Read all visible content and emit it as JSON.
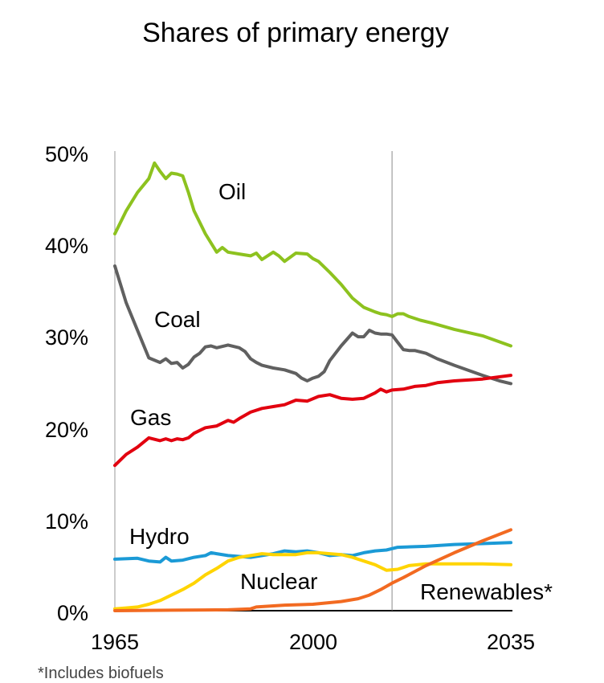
{
  "chart_data": {
    "type": "line",
    "title": "Shares of primary energy",
    "footnote": "*Includes biofuels",
    "x_ticks": [
      "1965",
      "2000",
      "2035"
    ],
    "y_ticks": [
      "0%",
      "10%",
      "20%",
      "30%",
      "40%",
      "50%"
    ],
    "xlim": [
      1965,
      2035
    ],
    "ylim": [
      0,
      50
    ],
    "projection_start": 2014,
    "grid": false,
    "series": [
      {
        "name": "Oil",
        "color": "#8dc21f",
        "x": [
          1965,
          1967,
          1969,
          1971,
          1972,
          1973,
          1974,
          1975,
          1976,
          1977,
          1978,
          1979,
          1981,
          1983,
          1984,
          1985,
          1987,
          1989,
          1990,
          1991,
          1993,
          1994,
          1995,
          1997,
          1999,
          2000,
          2001,
          2003,
          2005,
          2007,
          2009,
          2011,
          2012,
          2013,
          2014,
          2015,
          2016,
          2017,
          2019,
          2021,
          2025,
          2030,
          2035
        ],
        "y": [
          41.0,
          43.5,
          45.5,
          47.0,
          48.7,
          47.8,
          47.0,
          47.6,
          47.5,
          47.3,
          45.5,
          43.5,
          41.0,
          39.0,
          39.5,
          39.0,
          38.8,
          38.6,
          38.9,
          38.2,
          39.0,
          38.6,
          38.0,
          38.9,
          38.8,
          38.3,
          38.0,
          36.8,
          35.5,
          34.0,
          33.0,
          32.5,
          32.3,
          32.2,
          32.0,
          32.3,
          32.3,
          32.0,
          31.6,
          31.3,
          30.6,
          29.9,
          28.8
        ]
      },
      {
        "name": "Coal",
        "color": "#606060",
        "x": [
          1965,
          1967,
          1969,
          1971,
          1973,
          1974,
          1975,
          1976,
          1977,
          1978,
          1979,
          1980,
          1981,
          1982,
          1983,
          1985,
          1987,
          1988,
          1989,
          1990,
          1991,
          1993,
          1995,
          1997,
          1998,
          1999,
          2000,
          2001,
          2002,
          2003,
          2005,
          2007,
          2008,
          2009,
          2010,
          2011,
          2012,
          2013,
          2014,
          2015,
          2016,
          2017,
          2018,
          2020,
          2022,
          2025,
          2030,
          2033,
          2035
        ],
        "y": [
          37.5,
          33.5,
          30.5,
          27.5,
          27.0,
          27.4,
          26.9,
          27.0,
          26.4,
          26.8,
          27.6,
          28.0,
          28.7,
          28.8,
          28.6,
          28.9,
          28.6,
          28.2,
          27.4,
          27.0,
          26.7,
          26.4,
          26.2,
          25.8,
          25.3,
          25.0,
          25.3,
          25.5,
          26.0,
          27.2,
          28.8,
          30.2,
          29.8,
          29.8,
          30.5,
          30.2,
          30.1,
          30.1,
          30.0,
          29.2,
          28.4,
          28.3,
          28.3,
          28.0,
          27.4,
          26.7,
          25.6,
          25.0,
          24.7
        ]
      },
      {
        "name": "Gas",
        "color": "#e2000f",
        "x": [
          1965,
          1967,
          1969,
          1971,
          1973,
          1974,
          1975,
          1976,
          1977,
          1978,
          1979,
          1981,
          1983,
          1985,
          1986,
          1987,
          1989,
          1991,
          1993,
          1995,
          1997,
          1999,
          2001,
          2003,
          2005,
          2007,
          2009,
          2011,
          2012,
          2013,
          2014,
          2016,
          2018,
          2020,
          2022,
          2025,
          2030,
          2035
        ],
        "y": [
          15.8,
          17.0,
          17.8,
          18.8,
          18.5,
          18.7,
          18.5,
          18.7,
          18.6,
          18.8,
          19.3,
          19.9,
          20.1,
          20.7,
          20.5,
          20.9,
          21.6,
          22.0,
          22.2,
          22.4,
          22.9,
          22.8,
          23.3,
          23.5,
          23.1,
          23.0,
          23.1,
          23.7,
          24.1,
          23.8,
          24.0,
          24.1,
          24.4,
          24.5,
          24.8,
          25.0,
          25.2,
          25.6
        ]
      },
      {
        "name": "Hydro",
        "color": "#1b9ad6",
        "x": [
          1965,
          1969,
          1971,
          1973,
          1974,
          1975,
          1977,
          1979,
          1981,
          1982,
          1983,
          1985,
          1987,
          1989,
          1991,
          1993,
          1995,
          1997,
          1999,
          2001,
          2003,
          2005,
          2007,
          2009,
          2011,
          2013,
          2015,
          2020,
          2025,
          2030,
          2035
        ],
        "y": [
          5.6,
          5.7,
          5.4,
          5.3,
          5.8,
          5.4,
          5.5,
          5.8,
          6.0,
          6.3,
          6.2,
          6.0,
          5.9,
          5.8,
          6.0,
          6.2,
          6.5,
          6.4,
          6.5,
          6.3,
          6.0,
          6.1,
          6.0,
          6.3,
          6.5,
          6.6,
          6.9,
          7.0,
          7.2,
          7.3,
          7.4
        ]
      },
      {
        "name": "Nuclear",
        "color": "#ffd400",
        "x": [
          1965,
          1967,
          1969,
          1971,
          1973,
          1975,
          1977,
          1979,
          1981,
          1983,
          1985,
          1987,
          1989,
          1991,
          1993,
          1995,
          1997,
          1999,
          2001,
          2003,
          2005,
          2007,
          2009,
          2011,
          2013,
          2015,
          2017,
          2020,
          2025,
          2030,
          2035
        ],
        "y": [
          0.2,
          0.3,
          0.4,
          0.7,
          1.1,
          1.7,
          2.3,
          3.0,
          3.9,
          4.6,
          5.4,
          5.8,
          6.0,
          6.2,
          6.1,
          6.1,
          6.1,
          6.3,
          6.3,
          6.2,
          6.1,
          5.8,
          5.4,
          5.0,
          4.4,
          4.5,
          4.9,
          5.1,
          5.1,
          5.1,
          5.0
        ]
      },
      {
        "name": "Renewables*",
        "color": "#f26a21",
        "x": [
          1965,
          1975,
          1985,
          1989,
          1990,
          1995,
          2000,
          2005,
          2008,
          2010,
          2012,
          2014,
          2016,
          2020,
          2025,
          2030,
          2035
        ],
        "y": [
          0.0,
          0.05,
          0.1,
          0.2,
          0.4,
          0.6,
          0.7,
          1.0,
          1.3,
          1.7,
          2.3,
          3.0,
          3.6,
          4.9,
          6.3,
          7.6,
          8.8
        ]
      }
    ]
  }
}
